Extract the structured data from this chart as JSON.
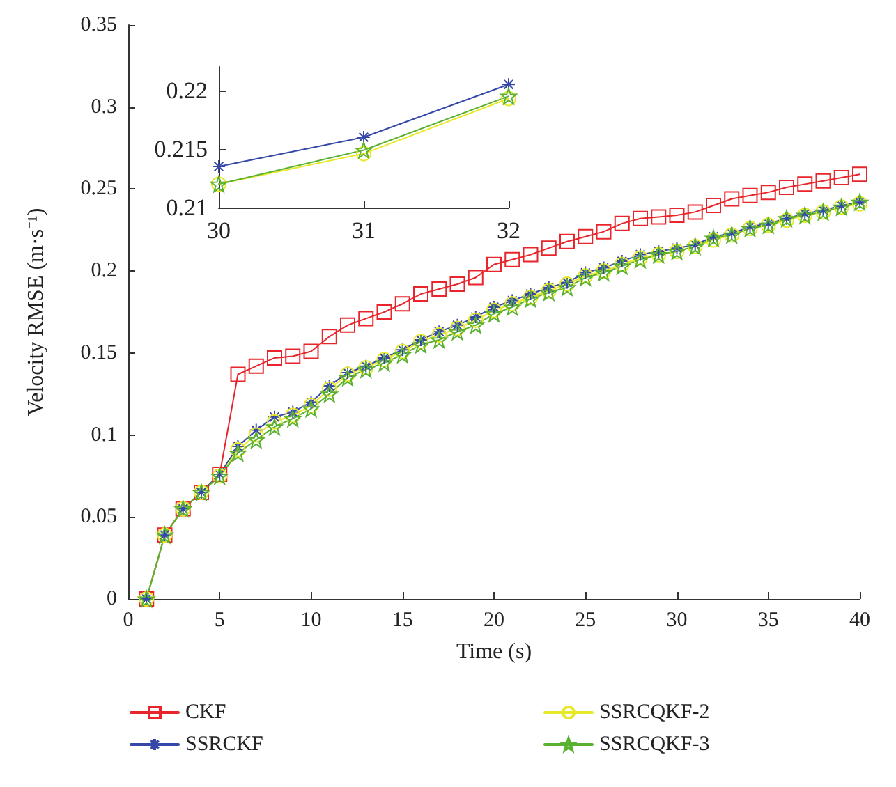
{
  "chart_data": [
    {
      "type": "line",
      "xlabel": "Time (s)",
      "ylabel": "Velocity RMSE (m·s⁻¹)",
      "x": [
        1,
        2,
        3,
        4,
        5,
        6,
        7,
        8,
        9,
        10,
        11,
        12,
        13,
        14,
        15,
        16,
        17,
        18,
        19,
        20,
        21,
        22,
        23,
        24,
        25,
        26,
        27,
        28,
        29,
        30,
        31,
        32,
        33,
        34,
        35,
        36,
        37,
        38,
        39,
        40
      ],
      "series": [
        {
          "name": "CKF",
          "color": "#e8252a",
          "marker": "square",
          "values": [
            0,
            0.039,
            0.055,
            0.065,
            0.076,
            0.137,
            0.142,
            0.147,
            0.148,
            0.151,
            0.16,
            0.167,
            0.171,
            0.175,
            0.18,
            0.186,
            0.189,
            0.192,
            0.196,
            0.204,
            0.207,
            0.21,
            0.214,
            0.218,
            0.221,
            0.224,
            0.229,
            0.232,
            0.233,
            0.234,
            0.236,
            0.24,
            0.244,
            0.246,
            0.248,
            0.251,
            0.253,
            0.255,
            0.257,
            0.259
          ]
        },
        {
          "name": "SSRCKF",
          "color": "#3548a8",
          "marker": "cross",
          "values": [
            0,
            0.039,
            0.055,
            0.065,
            0.076,
            0.093,
            0.103,
            0.111,
            0.114,
            0.12,
            0.13,
            0.138,
            0.142,
            0.147,
            0.152,
            0.158,
            0.163,
            0.167,
            0.172,
            0.178,
            0.182,
            0.186,
            0.19,
            0.193,
            0.199,
            0.202,
            0.206,
            0.21,
            0.212,
            0.214,
            0.216,
            0.221,
            0.223,
            0.227,
            0.229,
            0.232,
            0.235,
            0.237,
            0.24,
            0.242
          ]
        },
        {
          "name": "SSRCQKF-2",
          "color": "#e8e82a",
          "marker": "circle",
          "values": [
            0,
            0.039,
            0.055,
            0.065,
            0.075,
            0.091,
            0.1,
            0.108,
            0.112,
            0.118,
            0.128,
            0.137,
            0.141,
            0.146,
            0.151,
            0.157,
            0.161,
            0.165,
            0.17,
            0.176,
            0.18,
            0.184,
            0.188,
            0.192,
            0.197,
            0.2,
            0.204,
            0.208,
            0.21,
            0.212,
            0.215,
            0.219,
            0.222,
            0.226,
            0.228,
            0.231,
            0.234,
            0.236,
            0.239,
            0.241
          ]
        },
        {
          "name": "SSRCQKF-3",
          "color": "#5ab030",
          "marker": "star",
          "values": [
            0,
            0.039,
            0.055,
            0.065,
            0.075,
            0.089,
            0.097,
            0.105,
            0.11,
            0.116,
            0.125,
            0.135,
            0.14,
            0.144,
            0.149,
            0.155,
            0.158,
            0.163,
            0.167,
            0.174,
            0.178,
            0.183,
            0.187,
            0.19,
            0.196,
            0.199,
            0.203,
            0.207,
            0.21,
            0.212,
            0.215,
            0.22,
            0.222,
            0.226,
            0.228,
            0.232,
            0.234,
            0.236,
            0.239,
            0.242
          ]
        }
      ],
      "xlim": [
        0,
        40
      ],
      "xticks": [
        0,
        5,
        10,
        15,
        20,
        25,
        30,
        35,
        40
      ],
      "ylim": [
        0,
        0.35
      ],
      "yticks": [
        0,
        0.05,
        0.1,
        0.15,
        0.2,
        0.25,
        0.3,
        0.35
      ],
      "grid": false,
      "legend": "bottom"
    },
    {
      "type": "line",
      "x": [
        30,
        31,
        32
      ],
      "series": [
        {
          "color": "#3548a8",
          "marker": "cross",
          "values": [
            0.2135,
            0.216,
            0.2205
          ]
        },
        {
          "color": "#e8e82a",
          "marker": "circle",
          "values": [
            0.212,
            0.2146,
            0.2193
          ]
        },
        {
          "color": "#5ab030",
          "marker": "star",
          "values": [
            0.212,
            0.2149,
            0.2195
          ]
        }
      ],
      "xlim": [
        30,
        32
      ],
      "xticks": [
        30,
        31,
        32
      ],
      "ylim": [
        0.21,
        0.222
      ],
      "yticks": [
        0.21,
        0.215,
        0.22
      ],
      "grid": false,
      "legend": false
    }
  ]
}
